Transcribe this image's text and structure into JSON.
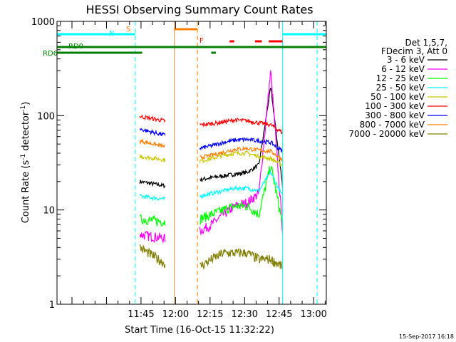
{
  "chart_data": {
    "type": "line",
    "title": "HESSI Observing Summary Count Rates",
    "xlabel": "Start Time (16-Oct-15 11:32:22)",
    "ylabel": {
      "prefix": "Count Rate (s",
      "sup1": "-1",
      "mid": " detector",
      "sup2": "-1",
      "suffix": ")"
    },
    "y_scale": "log",
    "ylim": [
      1,
      1000
    ],
    "y_ticks": [
      {
        "value": 1,
        "label": "1"
      },
      {
        "value": 10,
        "label": "10"
      },
      {
        "value": 100,
        "label": "100"
      },
      {
        "value": 1000,
        "label": "1000"
      }
    ],
    "xlim_minutes_after_1130": [
      -21.5,
      95.5
    ],
    "x_ticks": [
      {
        "t": 15,
        "label": "11:45"
      },
      {
        "t": 30,
        "label": "12:00"
      },
      {
        "t": 45,
        "label": "12:15"
      },
      {
        "t": 60,
        "label": "12:30"
      },
      {
        "t": 75,
        "label": "12:45"
      },
      {
        "t": 90,
        "label": "13:00"
      }
    ],
    "legend_header": [
      "Det 1,5,7,",
      "FDecim 3, Att 0"
    ],
    "legend_placement": "right, outside plot",
    "series": [
      {
        "name": "3 - 6 keV",
        "color": "#000000",
        "segment1": [
          20,
          18
        ],
        "segment2": [
          21,
          22,
          23,
          24,
          25,
          30,
          200,
          18
        ]
      },
      {
        "name": "6 - 12 keV",
        "color": "#ff00ff",
        "segment1": [
          5.5,
          5
        ],
        "segment2": [
          6,
          7,
          9,
          11,
          12,
          15,
          300,
          6
        ]
      },
      {
        "name": "12 - 25 keV",
        "color": "#00ff00",
        "segment1": [
          8,
          7.5
        ],
        "segment2": [
          8,
          9,
          10,
          11,
          11,
          9,
          30,
          7
        ]
      },
      {
        "name": "25 - 50 keV",
        "color": "#00ffff",
        "segment1": [
          14,
          13
        ],
        "segment2": [
          14,
          15,
          16,
          17,
          17,
          16,
          25,
          14
        ]
      },
      {
        "name": "50 - 100 keV",
        "color": "#c8c800",
        "segment1": [
          37,
          34
        ],
        "segment2": [
          33,
          35,
          38,
          40,
          40,
          37,
          35,
          30
        ]
      },
      {
        "name": "100 - 300 keV",
        "color": "#ff0000",
        "segment1": [
          98,
          88
        ],
        "segment2": [
          80,
          82,
          86,
          90,
          88,
          84,
          80,
          66
        ]
      },
      {
        "name": "300 - 800 keV",
        "color": "#0000ff",
        "segment1": [
          72,
          62
        ],
        "segment2": [
          45,
          48,
          52,
          55,
          56,
          54,
          52,
          42
        ]
      },
      {
        "name": "800 - 7000 keV",
        "color": "#ff8000",
        "segment1": [
          54,
          47
        ],
        "segment2": [
          36,
          38,
          41,
          44,
          45,
          43,
          42,
          34
        ]
      },
      {
        "name": "7000 - 20000 keV",
        "color": "#808000",
        "segment1": [
          4,
          2.7
        ],
        "segment2": [
          2.5,
          3,
          3.5,
          3.5,
          3.5,
          3,
          3,
          2.5
        ]
      }
    ],
    "segments_t": {
      "segment1": [
        14.5,
        25.5
      ],
      "segment2": [
        40.5,
        76.5
      ]
    },
    "status_bars": [
      {
        "label": "N",
        "color": "#00ffff",
        "ranges": [
          [
            -21.5,
            12.5
          ],
          [
            76.5,
            95.5
          ]
        ]
      },
      {
        "label": "S",
        "color": "#ff8000",
        "ranges": [
          [
            29.5,
            39.5
          ]
        ]
      },
      {
        "label": "F",
        "color": "#ff0000",
        "ranges": [
          [
            53.5,
            55.5
          ],
          [
            64.5,
            67.5
          ],
          [
            70.5,
            76.5
          ]
        ]
      },
      {
        "label": "RD0",
        "color": "#008000",
        "ranges": [
          [
            -21.5,
            95.5
          ]
        ]
      },
      {
        "label": "RD6",
        "color": "#008000",
        "ranges": [
          [
            -21.5,
            15.5
          ],
          [
            45.5,
            47.5
          ]
        ]
      }
    ],
    "vertical_markers": [
      {
        "t": -21.5,
        "color": "#00ffff",
        "style": "solid"
      },
      {
        "t": 12.5,
        "color": "#00ffff",
        "style": "dashed"
      },
      {
        "t": 29.5,
        "color": "#cc8844",
        "style": "solid"
      },
      {
        "t": 39.5,
        "color": "#ff8000",
        "style": "dashed"
      },
      {
        "t": 76.5,
        "color": "#00ffff",
        "style": "solid"
      },
      {
        "t": 91.5,
        "color": "#00ffff",
        "style": "dashed"
      }
    ],
    "grid": false
  },
  "footer_date": "15-Sep-2017 16:18"
}
